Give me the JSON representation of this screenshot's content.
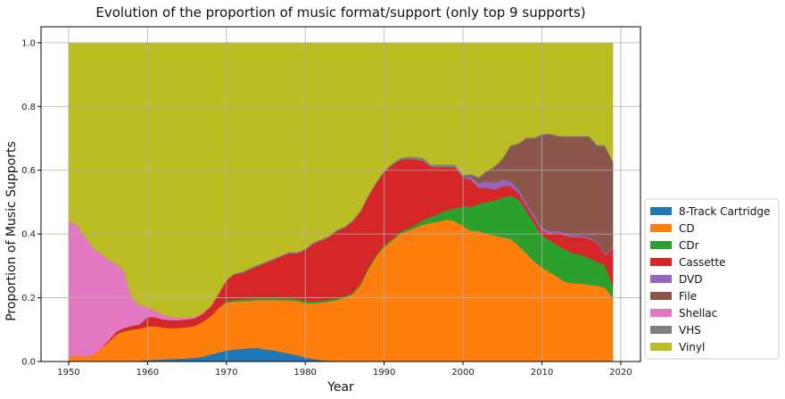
{
  "chart_data": {
    "type": "area",
    "stacked": true,
    "title": "Evolution of the proportion of music format/support (only top 9 supports)",
    "xlabel": "Year",
    "ylabel": "Proportion of Music Supports",
    "xlim": [
      1946.5,
      2022.5
    ],
    "ylim": [
      0,
      1.05
    ],
    "xticks": [
      1950,
      1960,
      1970,
      1980,
      1990,
      2000,
      2010,
      2020
    ],
    "yticks": [
      0.0,
      0.2,
      0.4,
      0.6,
      0.8,
      1.0
    ],
    "grid": true,
    "legend_position": "lower-right-outside",
    "x": [
      1950,
      1951,
      1952,
      1953,
      1954,
      1955,
      1956,
      1957,
      1958,
      1959,
      1960,
      1961,
      1962,
      1963,
      1964,
      1965,
      1966,
      1967,
      1968,
      1969,
      1970,
      1971,
      1972,
      1973,
      1974,
      1975,
      1976,
      1977,
      1978,
      1979,
      1980,
      1981,
      1982,
      1983,
      1984,
      1985,
      1986,
      1987,
      1988,
      1989,
      1990,
      1991,
      1992,
      1993,
      1994,
      1995,
      1996,
      1997,
      1998,
      1999,
      2000,
      2001,
      2002,
      2003,
      2004,
      2005,
      2006,
      2007,
      2008,
      2009,
      2010,
      2011,
      2012,
      2013,
      2014,
      2015,
      2016,
      2017,
      2018,
      2019
    ],
    "series": [
      {
        "name": "8-Track Cartridge",
        "color": "#1f77b4",
        "values": [
          0,
          0,
          0,
          0,
          0,
          0,
          0,
          0,
          0,
          0.003,
          0.005,
          0.006,
          0.007,
          0.008,
          0.009,
          0.01,
          0.012,
          0.015,
          0.022,
          0.028,
          0.035,
          0.038,
          0.04,
          0.042,
          0.043,
          0.038,
          0.035,
          0.03,
          0.025,
          0.02,
          0.013,
          0.008,
          0.005,
          0.003,
          0.002,
          0.001,
          0.001,
          0,
          0,
          0,
          0,
          0,
          0,
          0,
          0,
          0,
          0,
          0,
          0,
          0,
          0,
          0,
          0,
          0,
          0,
          0,
          0,
          0,
          0,
          0,
          0,
          0,
          0,
          0,
          0,
          0,
          0,
          0,
          0,
          0
        ]
      },
      {
        "name": "CD",
        "color": "#ff7f0e",
        "values": [
          0.012,
          0.02,
          0.015,
          0.02,
          0.04,
          0.06,
          0.085,
          0.095,
          0.1,
          0.1,
          0.105,
          0.105,
          0.1,
          0.097,
          0.096,
          0.098,
          0.1,
          0.11,
          0.12,
          0.14,
          0.15,
          0.15,
          0.15,
          0.148,
          0.15,
          0.155,
          0.158,
          0.162,
          0.167,
          0.17,
          0.17,
          0.175,
          0.18,
          0.185,
          0.19,
          0.2,
          0.21,
          0.24,
          0.29,
          0.33,
          0.36,
          0.38,
          0.4,
          0.41,
          0.42,
          0.43,
          0.435,
          0.44,
          0.445,
          0.44,
          0.425,
          0.41,
          0.41,
          0.4,
          0.395,
          0.39,
          0.385,
          0.365,
          0.34,
          0.315,
          0.295,
          0.28,
          0.265,
          0.25,
          0.245,
          0.245,
          0.24,
          0.238,
          0.232,
          0.2
        ]
      },
      {
        "name": "CDr",
        "color": "#2ca02c",
        "values": [
          0,
          0,
          0,
          0,
          0,
          0,
          0,
          0,
          0,
          0,
          0,
          0,
          0,
          0,
          0,
          0,
          0,
          0,
          0,
          0,
          0.005,
          0.006,
          0.006,
          0.006,
          0.006,
          0.006,
          0.006,
          0.006,
          0.006,
          0.006,
          0.006,
          0.006,
          0.006,
          0.006,
          0.005,
          0.005,
          0.005,
          0.005,
          0.005,
          0.005,
          0.005,
          0.005,
          0.006,
          0.007,
          0.01,
          0.015,
          0.02,
          0.025,
          0.03,
          0.04,
          0.063,
          0.075,
          0.085,
          0.1,
          0.11,
          0.125,
          0.135,
          0.145,
          0.135,
          0.12,
          0.1,
          0.1,
          0.1,
          0.1,
          0.095,
          0.09,
          0.085,
          0.075,
          0.07,
          0.037
        ]
      },
      {
        "name": "Cassette",
        "color": "#d62728",
        "values": [
          0,
          0,
          0,
          0,
          0,
          0.005,
          0.008,
          0.01,
          0.012,
          0.014,
          0.03,
          0.028,
          0.025,
          0.025,
          0.025,
          0.024,
          0.024,
          0.025,
          0.03,
          0.045,
          0.065,
          0.08,
          0.082,
          0.094,
          0.101,
          0.111,
          0.121,
          0.132,
          0.142,
          0.144,
          0.161,
          0.181,
          0.189,
          0.196,
          0.213,
          0.214,
          0.224,
          0.225,
          0.225,
          0.225,
          0.23,
          0.232,
          0.226,
          0.219,
          0.204,
          0.185,
          0.155,
          0.145,
          0.135,
          0.13,
          0.088,
          0.085,
          0.05,
          0.045,
          0.035,
          0.035,
          0.031,
          0.02,
          0.015,
          0.015,
          0.015,
          0.02,
          0.04,
          0.045,
          0.05,
          0.055,
          0.06,
          0.06,
          0.03,
          0.12
        ]
      },
      {
        "name": "DVD",
        "color": "#9467bd",
        "values": [
          0,
          0,
          0,
          0,
          0,
          0,
          0,
          0,
          0,
          0,
          0,
          0,
          0,
          0,
          0,
          0,
          0,
          0,
          0,
          0,
          0,
          0,
          0,
          0,
          0,
          0,
          0,
          0,
          0,
          0,
          0,
          0,
          0,
          0,
          0,
          0,
          0,
          0,
          0,
          0,
          0,
          0,
          0,
          0,
          0,
          0,
          0,
          0,
          0,
          0,
          0.002,
          0.01,
          0.015,
          0.02,
          0.02,
          0.02,
          0.015,
          0.012,
          0.01,
          0.01,
          0.01,
          0.008,
          0.006,
          0.005,
          0.005,
          0.005,
          0.005,
          0.004,
          0.004,
          0.004
        ]
      },
      {
        "name": "File",
        "color": "#8c564b",
        "values": [
          0,
          0,
          0,
          0,
          0,
          0,
          0,
          0,
          0,
          0,
          0,
          0,
          0,
          0,
          0,
          0,
          0,
          0,
          0,
          0,
          0,
          0,
          0,
          0,
          0,
          0,
          0,
          0,
          0,
          0,
          0,
          0,
          0,
          0,
          0,
          0,
          0,
          0,
          0,
          0,
          0,
          0,
          0,
          0,
          0,
          0,
          0,
          0,
          0,
          0,
          0.003,
          0.005,
          0.015,
          0.03,
          0.05,
          0.065,
          0.11,
          0.14,
          0.2,
          0.24,
          0.29,
          0.305,
          0.295,
          0.305,
          0.31,
          0.31,
          0.315,
          0.3,
          0.34,
          0.265
        ]
      },
      {
        "name": "Shellac",
        "color": "#e377c2",
        "values": [
          0.43,
          0.41,
          0.38,
          0.34,
          0.3,
          0.255,
          0.215,
          0.18,
          0.09,
          0.06,
          0.03,
          0.02,
          0.015,
          0.01,
          0.008,
          0.006,
          0.004,
          0.003,
          0.002,
          0.001,
          0,
          0,
          0,
          0,
          0,
          0,
          0,
          0,
          0,
          0,
          0,
          0,
          0,
          0,
          0,
          0,
          0,
          0,
          0,
          0,
          0,
          0,
          0,
          0,
          0,
          0,
          0,
          0,
          0,
          0,
          0,
          0,
          0,
          0,
          0,
          0,
          0,
          0,
          0,
          0,
          0,
          0,
          0,
          0,
          0,
          0,
          0,
          0,
          0,
          0
        ]
      },
      {
        "name": "VHS",
        "color": "#7f7f7f",
        "values": [
          0,
          0,
          0,
          0,
          0,
          0,
          0,
          0,
          0,
          0,
          0,
          0,
          0,
          0,
          0,
          0,
          0,
          0,
          0,
          0,
          0.002,
          0.003,
          0.004,
          0.004,
          0.004,
          0.004,
          0.004,
          0.004,
          0.004,
          0.004,
          0.004,
          0.004,
          0.004,
          0.004,
          0.004,
          0.004,
          0.004,
          0.004,
          0.004,
          0.004,
          0.004,
          0.005,
          0.006,
          0.007,
          0.008,
          0.008,
          0.008,
          0.008,
          0.008,
          0.008,
          0.004,
          0.004,
          0.004,
          0.004,
          0.003,
          0.003,
          0.003,
          0.003,
          0.003,
          0.003,
          0.003,
          0.003,
          0.003,
          0.003,
          0.003,
          0.003,
          0.003,
          0.003,
          0.003,
          0.003
        ]
      },
      {
        "name": "Vinyl",
        "color": "#bcbd22",
        "values": [
          0.558,
          0.57,
          0.605,
          0.64,
          0.66,
          0.68,
          0.692,
          0.715,
          0.798,
          0.823,
          0.83,
          0.841,
          0.853,
          0.86,
          0.862,
          0.862,
          0.86,
          0.847,
          0.826,
          0.786,
          0.743,
          0.723,
          0.718,
          0.706,
          0.696,
          0.686,
          0.676,
          0.666,
          0.656,
          0.656,
          0.646,
          0.626,
          0.616,
          0.606,
          0.586,
          0.576,
          0.556,
          0.526,
          0.476,
          0.436,
          0.401,
          0.378,
          0.362,
          0.357,
          0.358,
          0.362,
          0.382,
          0.382,
          0.382,
          0.382,
          0.415,
          0.411,
          0.421,
          0.401,
          0.387,
          0.362,
          0.321,
          0.315,
          0.297,
          0.297,
          0.287,
          0.284,
          0.291,
          0.292,
          0.292,
          0.292,
          0.292,
          0.32,
          0.321,
          0.371
        ]
      }
    ]
  }
}
